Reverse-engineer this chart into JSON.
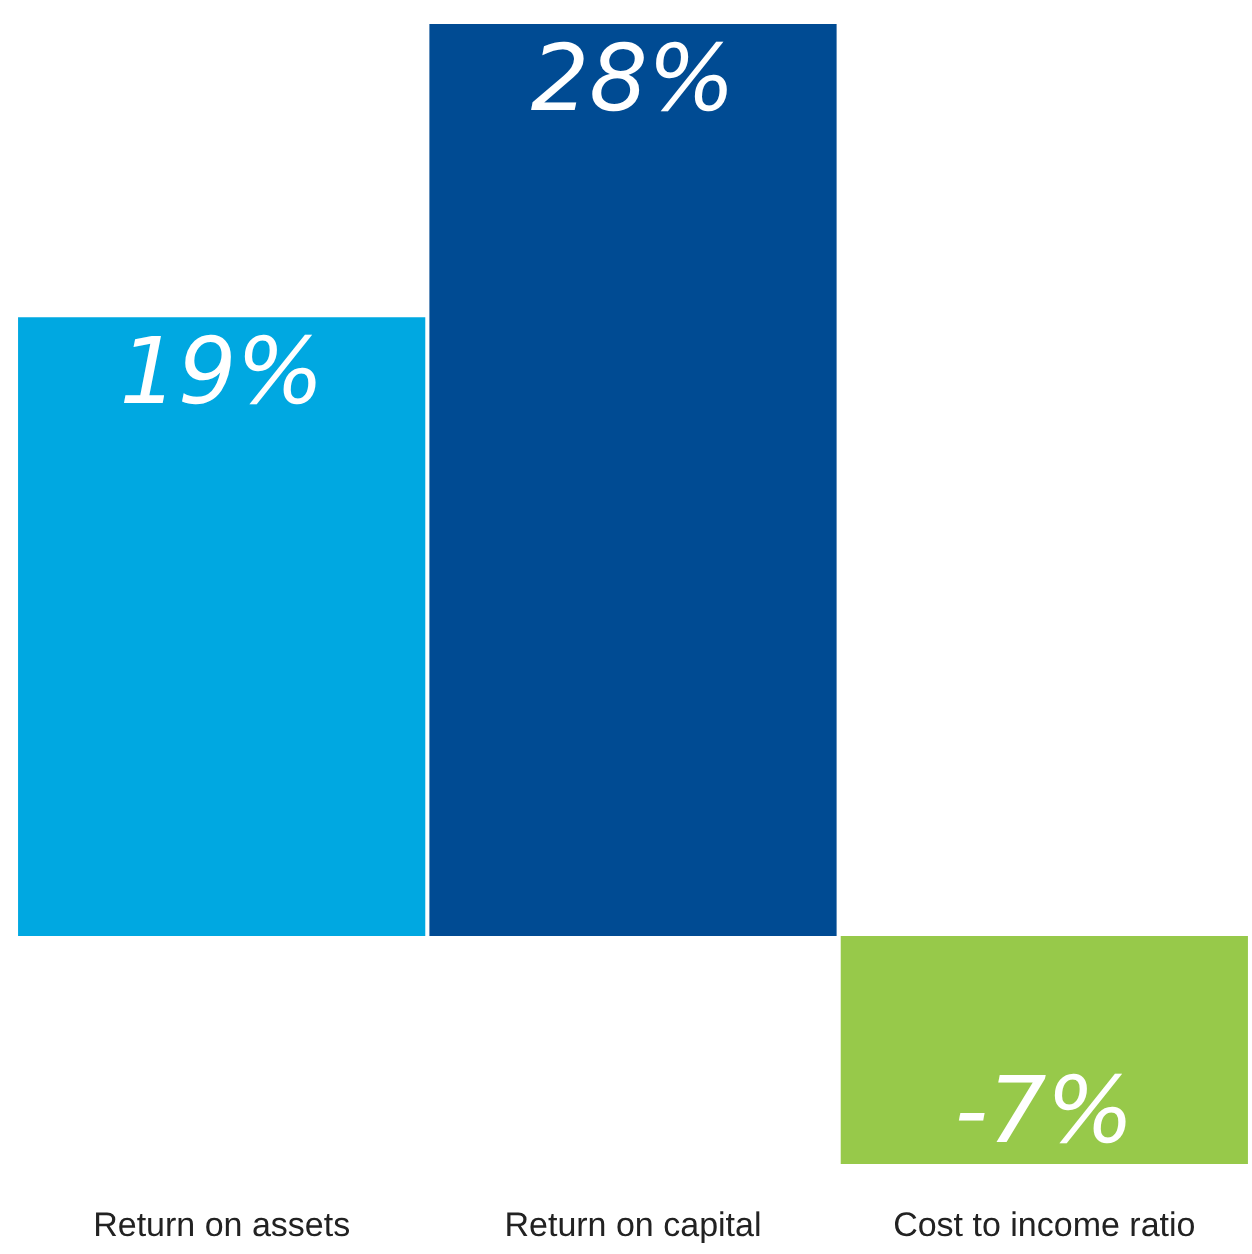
{
  "chart_data": {
    "type": "bar",
    "categories": [
      "Return on assets",
      "Return on capital",
      "Cost to income ratio"
    ],
    "values": [
      19,
      28,
      -7
    ],
    "colors": [
      "#00a8e1",
      "#004b93",
      "#97c94a"
    ],
    "value_labels": [
      "19%",
      "28%",
      "-7%"
    ],
    "tick_labels": "x",
    "grid": false
  }
}
